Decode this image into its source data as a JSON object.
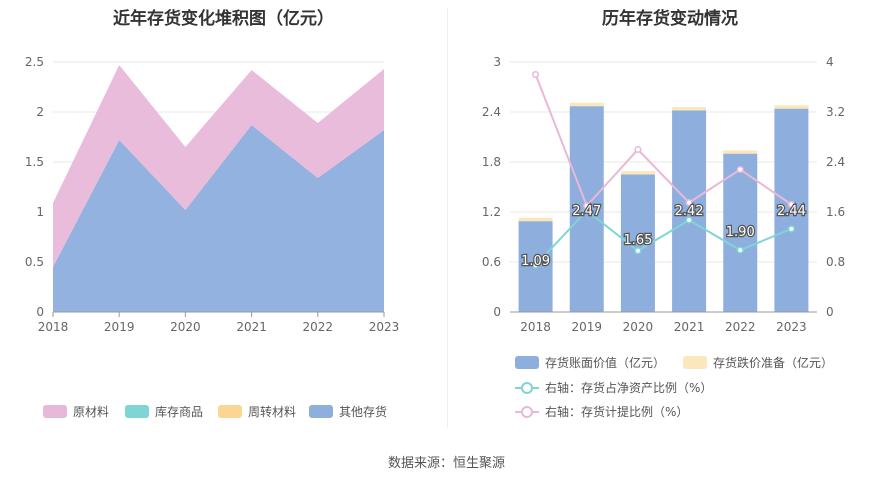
{
  "source_text": "数据来源：恒生聚源",
  "chart_data": [
    {
      "type": "area",
      "title": "近年存货变化堆积图（亿元）",
      "categories": [
        "2018",
        "2019",
        "2020",
        "2021",
        "2022",
        "2023"
      ],
      "ylim": [
        0,
        2.5
      ],
      "yticks": [
        "0",
        "0.5",
        "1",
        "1.5",
        "2",
        "2.5"
      ],
      "stacked": true,
      "series": [
        {
          "name": "其他存货",
          "color": "#8eaedd",
          "values": [
            0.45,
            1.72,
            1.02,
            1.87,
            1.34,
            1.82
          ]
        },
        {
          "name": "周转材料",
          "color": "#fcd592",
          "values": [
            0,
            0,
            0,
            0,
            0,
            0
          ]
        },
        {
          "name": "库存商品",
          "color": "#7fd5d5",
          "values": [
            0,
            0,
            0,
            0,
            0,
            0
          ]
        },
        {
          "name": "原材料",
          "color": "#e9b8d9",
          "values": [
            0.64,
            0.75,
            0.63,
            0.55,
            0.55,
            0.61
          ]
        }
      ],
      "legend_order": [
        "原材料",
        "库存商品",
        "周转材料",
        "其他存货"
      ],
      "legend_position": "bottom",
      "grid": true
    },
    {
      "type": "bar",
      "title": "历年存货变动情况",
      "categories": [
        "2018",
        "2019",
        "2020",
        "2021",
        "2022",
        "2023"
      ],
      "ylim_left": [
        0,
        3
      ],
      "yticks_left": [
        "0",
        "0.6",
        "1.2",
        "1.8",
        "2.4",
        "3"
      ],
      "ylim_right": [
        0,
        4
      ],
      "yticks_right": [
        "0",
        "0.8",
        "1.6",
        "2.4",
        "3.2",
        "4"
      ],
      "bar_series": [
        {
          "name": "存货账面价值（亿元）",
          "color": "#8eaedd",
          "values": [
            1.09,
            2.47,
            1.65,
            2.42,
            1.9,
            2.44
          ],
          "labels": [
            "1.09",
            "2.47",
            "1.65",
            "2.42",
            "1.90",
            "2.44"
          ]
        },
        {
          "name": "存货跌价准备（亿元）",
          "color": "#fce7bb",
          "values": [
            0.04,
            0.04,
            0.04,
            0.04,
            0.04,
            0.04
          ]
        }
      ],
      "line_series": [
        {
          "name": "右轴：存货占净资产比例（%）",
          "color": "#7fd5d5",
          "values": [
            0.75,
            1.62,
            0.98,
            1.47,
            0.99,
            1.33
          ]
        },
        {
          "name": "右轴：存货计提比例（%）",
          "color": "#e9b8d9",
          "values": [
            3.8,
            1.7,
            2.6,
            1.75,
            2.28,
            1.72
          ]
        }
      ],
      "legend_position": "bottom",
      "grid": true
    }
  ]
}
